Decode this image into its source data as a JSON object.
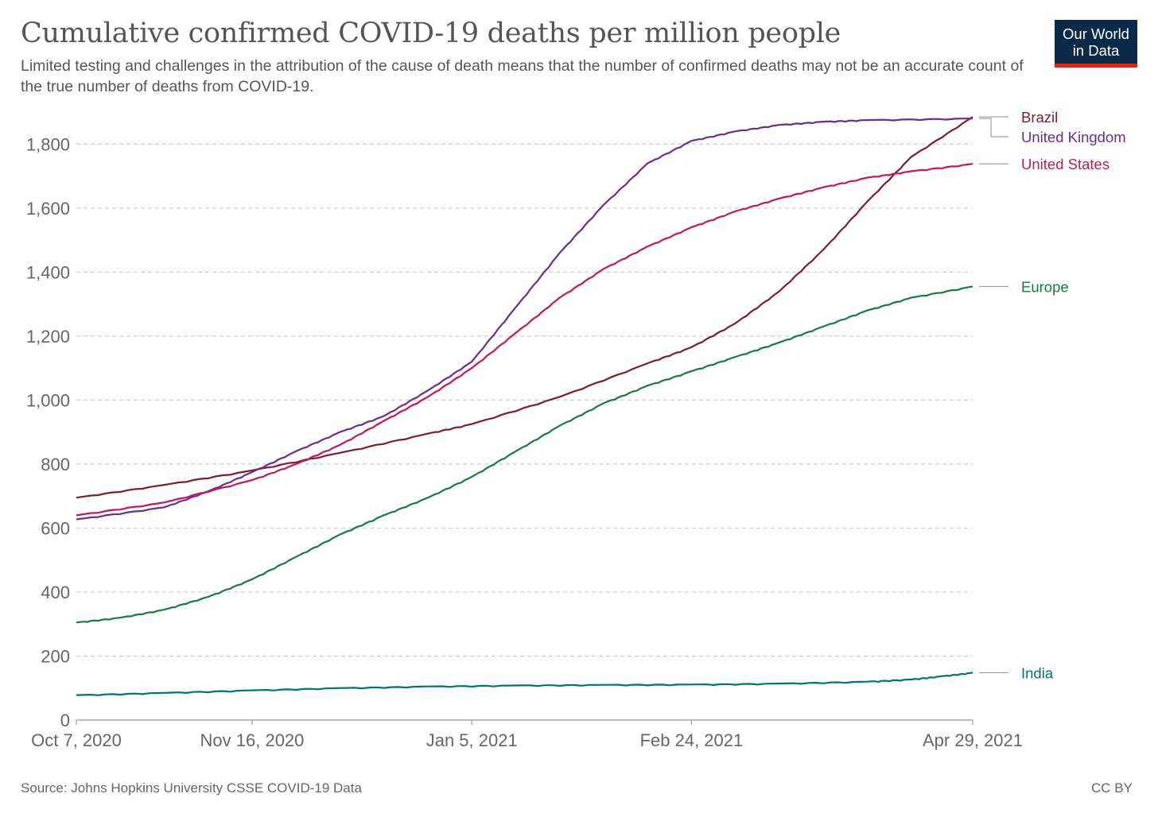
{
  "header": {
    "title": "Cumulative confirmed COVID-19 deaths per million people",
    "subtitle": "Limited testing and challenges in the attribution of the cause of death means that the number of confirmed deaths may not be an accurate count of the true number of deaths from COVID-19.",
    "logo_line1": "Our World",
    "logo_line2": "in Data"
  },
  "footer": {
    "source": "Source: Johns Hopkins University CSSE COVID-19 Data",
    "license": "CC BY"
  },
  "colors": {
    "logo_bg": "#0b2a4a",
    "logo_accent": "#d42b21"
  },
  "chart_data": {
    "type": "line",
    "title": "Cumulative confirmed COVID-19 deaths per million people",
    "xlabel": "",
    "ylabel": "",
    "x_start": "Oct 7, 2020",
    "x_end": "Apr 29, 2021",
    "x_ticks": [
      "Oct 7, 2020",
      "Nov 16, 2020",
      "Jan 5, 2021",
      "Feb 24, 2021",
      "Apr 29, 2021"
    ],
    "ylim": [
      0,
      1900
    ],
    "y_ticks": [
      0,
      200,
      400,
      600,
      800,
      1000,
      1200,
      1400,
      1600,
      1800
    ],
    "y_tick_labels": [
      "0",
      "200",
      "400",
      "600",
      "800",
      "1,000",
      "1,200",
      "1,400",
      "1,600",
      "1,800"
    ],
    "grid": true,
    "legend": "right-end labels",
    "series": [
      {
        "name": "Brazil",
        "color": "#7a1f2b",
        "points": [
          [
            "Oct 7, 2020",
            695
          ],
          [
            "Oct 27, 2020",
            735
          ],
          [
            "Nov 16, 2020",
            780
          ],
          [
            "Dec 6, 2020",
            835
          ],
          [
            "Dec 26, 2020",
            895
          ],
          [
            "Jan 5, 2021",
            925
          ],
          [
            "Jan 25, 2021",
            1010
          ],
          [
            "Feb 14, 2021",
            1115
          ],
          [
            "Feb 24, 2021",
            1165
          ],
          [
            "Mar 6, 2021",
            1240
          ],
          [
            "Mar 16, 2021",
            1340
          ],
          [
            "Mar 26, 2021",
            1470
          ],
          [
            "Apr 5, 2021",
            1620
          ],
          [
            "Apr 15, 2021",
            1760
          ],
          [
            "Apr 29, 2021",
            1885
          ]
        ]
      },
      {
        "name": "United Kingdom",
        "color": "#6b2d8f",
        "points": [
          [
            "Oct 7, 2020",
            627
          ],
          [
            "Oct 27, 2020",
            665
          ],
          [
            "Nov 6, 2020",
            715
          ],
          [
            "Nov 16, 2020",
            775
          ],
          [
            "Nov 26, 2020",
            840
          ],
          [
            "Dec 6, 2020",
            900
          ],
          [
            "Dec 16, 2020",
            950
          ],
          [
            "Dec 26, 2020",
            1030
          ],
          [
            "Jan 5, 2021",
            1120
          ],
          [
            "Jan 15, 2021",
            1290
          ],
          [
            "Jan 25, 2021",
            1460
          ],
          [
            "Feb 4, 2021",
            1610
          ],
          [
            "Feb 14, 2021",
            1740
          ],
          [
            "Feb 24, 2021",
            1810
          ],
          [
            "Mar 6, 2021",
            1840
          ],
          [
            "Mar 16, 2021",
            1860
          ],
          [
            "Mar 26, 2021",
            1870
          ],
          [
            "Apr 5, 2021",
            1875
          ],
          [
            "Apr 29, 2021",
            1880
          ]
        ]
      },
      {
        "name": "United States",
        "color": "#c2185b",
        "points": [
          [
            "Oct 7, 2020",
            640
          ],
          [
            "Oct 27, 2020",
            680
          ],
          [
            "Nov 16, 2020",
            750
          ],
          [
            "Nov 26, 2020",
            800
          ],
          [
            "Dec 6, 2020",
            860
          ],
          [
            "Dec 16, 2020",
            935
          ],
          [
            "Dec 26, 2020",
            1010
          ],
          [
            "Jan 5, 2021",
            1100
          ],
          [
            "Jan 15, 2021",
            1210
          ],
          [
            "Jan 25, 2021",
            1320
          ],
          [
            "Feb 4, 2021",
            1410
          ],
          [
            "Feb 14, 2021",
            1480
          ],
          [
            "Feb 24, 2021",
            1540
          ],
          [
            "Mar 6, 2021",
            1590
          ],
          [
            "Mar 16, 2021",
            1630
          ],
          [
            "Mar 26, 2021",
            1665
          ],
          [
            "Apr 5, 2021",
            1695
          ],
          [
            "Apr 15, 2021",
            1715
          ],
          [
            "Apr 29, 2021",
            1738
          ]
        ]
      },
      {
        "name": "Europe",
        "color": "#1a7a3c",
        "points": [
          [
            "Oct 7, 2020",
            305
          ],
          [
            "Oct 17, 2020",
            320
          ],
          [
            "Oct 27, 2020",
            345
          ],
          [
            "Nov 6, 2020",
            385
          ],
          [
            "Nov 16, 2020",
            440
          ],
          [
            "Nov 26, 2020",
            510
          ],
          [
            "Dec 6, 2020",
            580
          ],
          [
            "Dec 16, 2020",
            640
          ],
          [
            "Dec 26, 2020",
            695
          ],
          [
            "Jan 5, 2021",
            760
          ],
          [
            "Jan 15, 2021",
            840
          ],
          [
            "Jan 25, 2021",
            920
          ],
          [
            "Feb 4, 2021",
            990
          ],
          [
            "Feb 14, 2021",
            1045
          ],
          [
            "Feb 24, 2021",
            1090
          ],
          [
            "Mar 6, 2021",
            1135
          ],
          [
            "Mar 16, 2021",
            1180
          ],
          [
            "Mar 26, 2021",
            1230
          ],
          [
            "Apr 5, 2021",
            1280
          ],
          [
            "Apr 15, 2021",
            1320
          ],
          [
            "Apr 29, 2021",
            1355
          ]
        ]
      },
      {
        "name": "India",
        "color": "#00766c",
        "points": [
          [
            "Oct 7, 2020",
            78
          ],
          [
            "Oct 27, 2020",
            85
          ],
          [
            "Nov 16, 2020",
            93
          ],
          [
            "Dec 6, 2020",
            100
          ],
          [
            "Dec 26, 2020",
            105
          ],
          [
            "Jan 15, 2021",
            108
          ],
          [
            "Feb 4, 2021",
            110
          ],
          [
            "Feb 24, 2021",
            111
          ],
          [
            "Mar 16, 2021",
            114
          ],
          [
            "Apr 5, 2021",
            120
          ],
          [
            "Apr 15, 2021",
            127
          ],
          [
            "Apr 22, 2021",
            137
          ],
          [
            "Apr 29, 2021",
            148
          ]
        ]
      }
    ]
  }
}
